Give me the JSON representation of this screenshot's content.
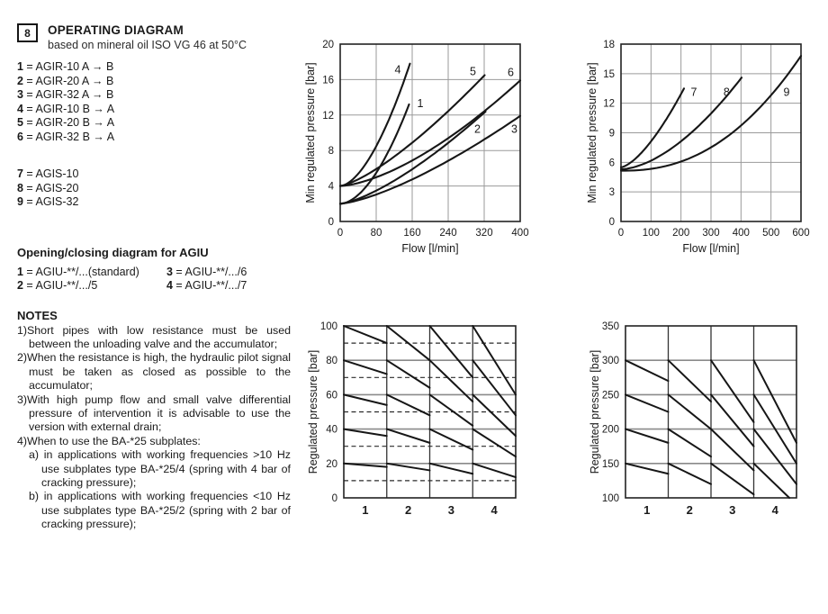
{
  "header": {
    "section_number": "8",
    "title": "OPERATING DIAGRAM",
    "subtitle": "based on mineral oil ISO VG 46 at 50°C"
  },
  "legend_agir": [
    {
      "n": "1",
      "t": "= AGIR-10 A → B"
    },
    {
      "n": "2",
      "t": "= AGIR-20 A → B"
    },
    {
      "n": "3",
      "t": "= AGIR-32 A → B"
    },
    {
      "n": "4",
      "t": "= AGIR-10 B → A"
    },
    {
      "n": "5",
      "t": "= AGIR-20 B → A"
    },
    {
      "n": "6",
      "t": "= AGIR-32 B → A"
    }
  ],
  "legend_agis": [
    {
      "n": "7",
      "t": "= AGIS-10"
    },
    {
      "n": "8",
      "t": "= AGIS-20"
    },
    {
      "n": "9",
      "t": "= AGIS-32"
    }
  ],
  "agiu": {
    "heading": "Opening/closing diagram for AGIU",
    "items": [
      {
        "n": "1",
        "t": "= AGIU-**/...(standard)"
      },
      {
        "n": "3",
        "t": "= AGIU-**/.../6"
      },
      {
        "n": "2",
        "t": "= AGIU-**/.../5"
      },
      {
        "n": "4",
        "t": "= AGIU-**/.../7"
      }
    ]
  },
  "notes": {
    "heading": "NOTES",
    "items": [
      {
        "n": "1)",
        "t": "Short pipes with low resistance must be used between the unloading valve and the accumulator;"
      },
      {
        "n": "2)",
        "t": "When the resistance is high, the hydraulic pilot signal must be taken as closed as possible to the accumulator;"
      },
      {
        "n": "3)",
        "t": "With high pump flow and small valve differential pressure of intervention it is advisable to use the version with external drain;"
      },
      {
        "n": "4)",
        "t": "When to use the BA-*25 subplates:",
        "sub": [
          {
            "n": "a)",
            "t": "in applications with working frequencies >10 Hz use subplates type BA-*25/4 (spring with 4 bar of cracking pressure);"
          },
          {
            "n": "b)",
            "t": "in applications with working frequencies <10 Hz use subplates type BA-*25/2 (spring with 2 bar of cracking pressure);"
          }
        ]
      }
    ]
  },
  "colors": {
    "curve": "#161616",
    "grid": "#9a9a9a",
    "frame": "#222222",
    "dashed": "#2a2a2a",
    "text": "#1a1a1a"
  },
  "chart_data": [
    {
      "id": "agir-min-regulated-pressure",
      "type": "line",
      "title": "Min regulated pressure vs flow, curves 1-6 (AGIR)",
      "xlabel": "Flow [l/min]",
      "ylabel": "Min regulated pressure [bar]",
      "xlim": [
        0,
        400
      ],
      "xticks": [
        0,
        80,
        160,
        240,
        320,
        400
      ],
      "ylim": [
        0,
        20
      ],
      "yticks": [
        0,
        4,
        8,
        12,
        16,
        20
      ],
      "grid": true,
      "series": [
        {
          "name": "1",
          "start": [
            0,
            2
          ],
          "end": [
            153,
            13.2
          ],
          "power": 1.8,
          "label": [
            178,
            13.3
          ]
        },
        {
          "name": "2",
          "start": [
            0,
            2
          ],
          "end": [
            323,
            12.4
          ],
          "power": 1.4,
          "label": [
            305,
            10.4
          ]
        },
        {
          "name": "3",
          "start": [
            0,
            2
          ],
          "end": [
            400,
            11.9
          ],
          "power": 1.4,
          "label": [
            387,
            10.4
          ]
        },
        {
          "name": "4",
          "start": [
            0,
            4
          ],
          "end": [
            155,
            17.8
          ],
          "power": 1.7,
          "label": [
            128,
            17.1
          ]
        },
        {
          "name": "5",
          "start": [
            0,
            4
          ],
          "end": [
            321,
            16.5
          ],
          "power": 1.35,
          "label": [
            295,
            16.9
          ]
        },
        {
          "name": "6",
          "start": [
            0,
            4
          ],
          "end": [
            400,
            15.9
          ],
          "power": 1.55,
          "label": [
            379,
            16.8
          ]
        }
      ]
    },
    {
      "id": "agis-min-regulated-pressure",
      "type": "line",
      "title": "Min regulated pressure vs flow, curves 7-9 (AGIS)",
      "xlabel": "Flow [l/min]",
      "ylabel": "Min regulated pressure [bar]",
      "xlim": [
        0,
        600
      ],
      "xticks": [
        0,
        100,
        200,
        300,
        400,
        500,
        600
      ],
      "ylim": [
        0,
        18
      ],
      "yticks": [
        0,
        3,
        6,
        9,
        12,
        15,
        18
      ],
      "grid": true,
      "series": [
        {
          "name": "7",
          "start": [
            0,
            5.5
          ],
          "end": [
            210,
            13.5
          ],
          "power": 1.5,
          "label": [
            243,
            13.1
          ]
        },
        {
          "name": "8",
          "start": [
            0,
            5.3
          ],
          "end": [
            402,
            14.6
          ],
          "power": 1.7,
          "label": [
            352,
            13.1
          ]
        },
        {
          "name": "9",
          "start": [
            0,
            5.15
          ],
          "end": [
            600,
            16.8
          ],
          "power": 2.3,
          "label": [
            552,
            13.1
          ]
        }
      ]
    },
    {
      "id": "agiu-opening-closing-low",
      "type": "hysteresis",
      "title": "Opening/closing diagram for AGIU, versions 1-4",
      "ylabel": "Regulated pressure [bar]",
      "ylim": [
        0,
        100
      ],
      "yticks": [
        0,
        20,
        40,
        60,
        80,
        100
      ],
      "dashed": [
        10,
        30,
        50,
        70,
        90
      ],
      "columns": [
        "1",
        "2",
        "3",
        "4"
      ],
      "segments": [
        [
          [
            100,
            90
          ],
          [
            80,
            72
          ],
          [
            60,
            54
          ],
          [
            40,
            36
          ],
          [
            20,
            18
          ]
        ],
        [
          [
            100,
            80
          ],
          [
            80,
            64
          ],
          [
            60,
            48
          ],
          [
            40,
            32
          ],
          [
            20,
            16
          ]
        ],
        [
          [
            100,
            70
          ],
          [
            80,
            56
          ],
          [
            60,
            42
          ],
          [
            40,
            28
          ],
          [
            20,
            14
          ]
        ],
        [
          [
            100,
            60
          ],
          [
            80,
            48
          ],
          [
            60,
            36
          ],
          [
            40,
            24
          ],
          [
            20,
            12
          ]
        ]
      ]
    },
    {
      "id": "agiu-opening-closing-high",
      "type": "hysteresis",
      "title": "Opening/closing diagram for AGIU, versions 1-4",
      "ylabel": "Regulated pressure [bar]",
      "ylim": [
        100,
        350
      ],
      "yticks": [
        100,
        150,
        200,
        250,
        300,
        350
      ],
      "dashed": [],
      "columns": [
        "1",
        "2",
        "3",
        "4"
      ],
      "segments": [
        [
          [
            300,
            270
          ],
          [
            250,
            225
          ],
          [
            200,
            180
          ],
          [
            150,
            135
          ]
        ],
        [
          [
            300,
            240
          ],
          [
            250,
            200
          ],
          [
            200,
            160
          ],
          [
            150,
            120
          ]
        ],
        [
          [
            300,
            210
          ],
          [
            250,
            175
          ],
          [
            200,
            140
          ],
          [
            150,
            105
          ]
        ],
        [
          [
            300,
            180
          ],
          [
            250,
            150
          ],
          [
            200,
            120
          ],
          [
            150,
            90
          ]
        ]
      ]
    }
  ]
}
